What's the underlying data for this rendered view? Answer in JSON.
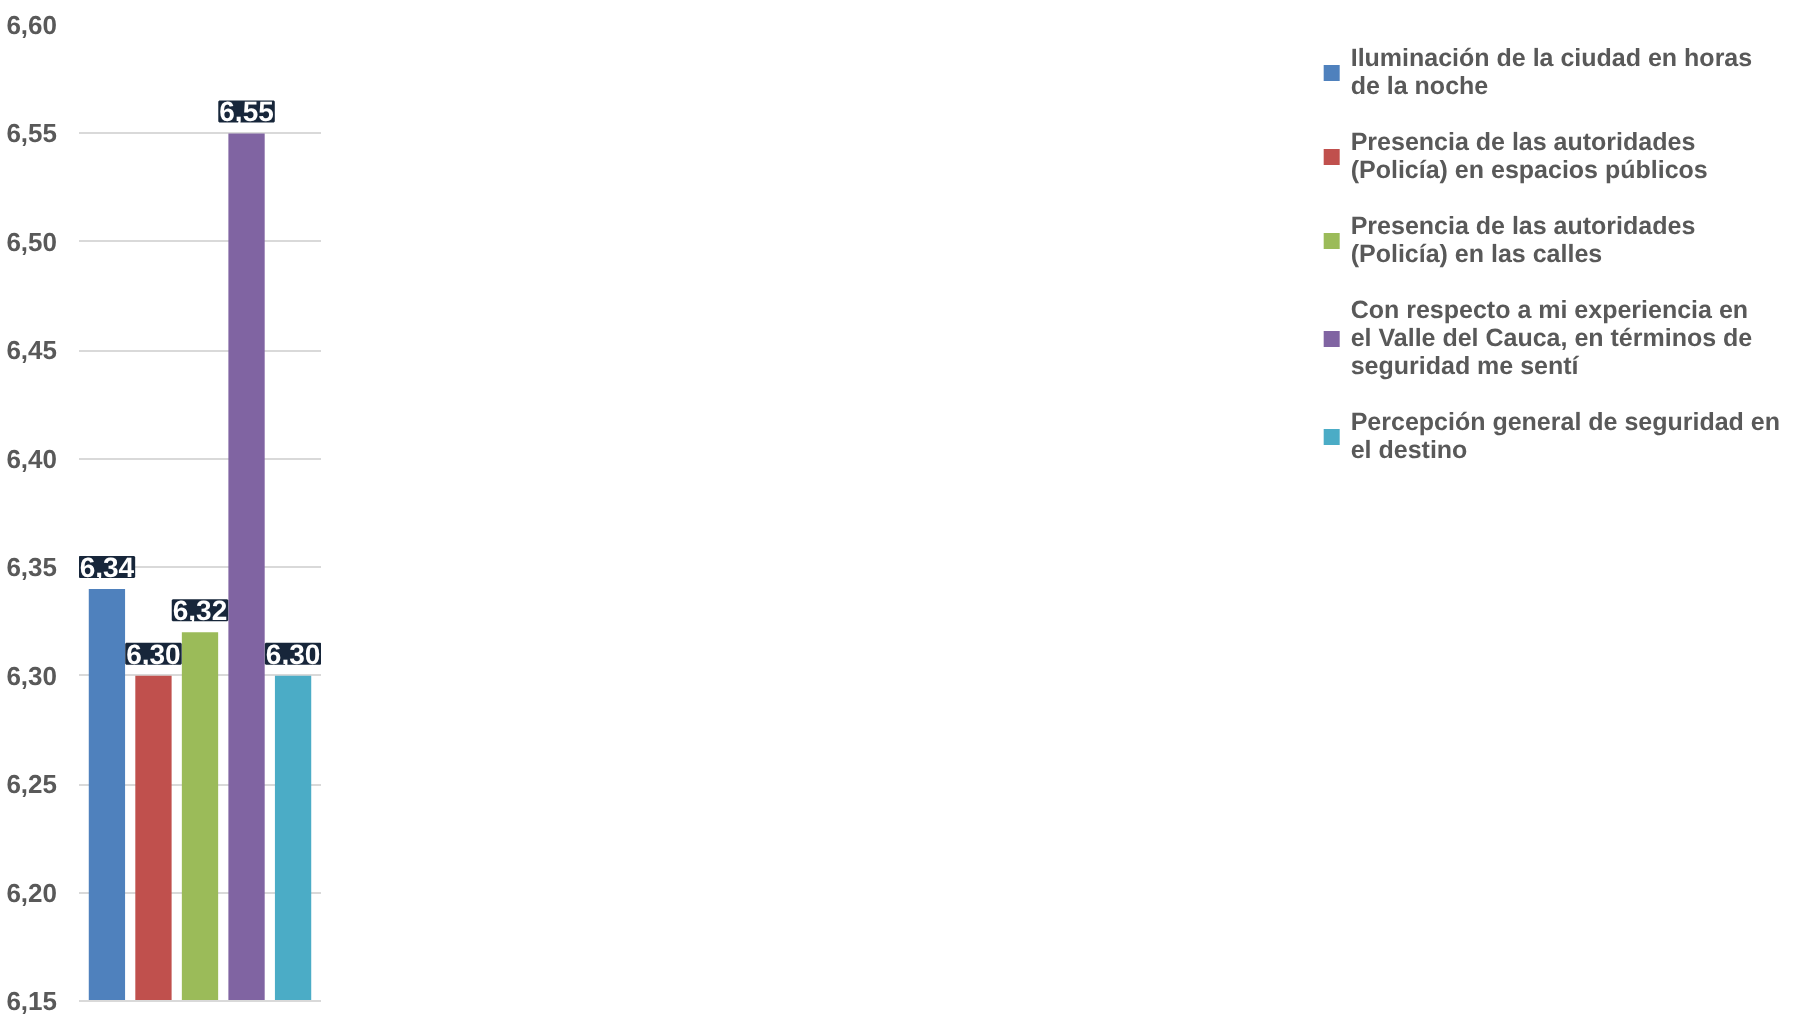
{
  "chart_data": {
    "type": "bar",
    "categories": [
      null,
      null,
      null,
      null,
      null
    ],
    "series": [
      {
        "name": "Iluminación de la ciudad en horas de la noche",
        "color": "#4f81bd",
        "values": [
          6.34,
          null,
          null,
          null,
          null
        ],
        "value_labels": [
          "6,34",
          null,
          null,
          null,
          null
        ]
      },
      {
        "name": "Presencia de las autoridades (Policía) en espacios públicos",
        "color": "#c0504d",
        "values": [
          null,
          6.3,
          null,
          null,
          null
        ],
        "value_labels": [
          null,
          "6,30",
          null,
          null,
          null
        ]
      },
      {
        "name": "Presencia de las autoridades (Policía) en las calles",
        "color": "#9bbb59",
        "values": [
          null,
          null,
          6.32,
          null,
          null
        ],
        "value_labels": [
          null,
          null,
          "6,32",
          null,
          null
        ]
      },
      {
        "name": "Con respecto a mi experiencia en el Valle del Cauca, en términos de seguridad me sentí",
        "color": "#8064a2",
        "values": [
          null,
          null,
          null,
          6.55,
          null
        ],
        "value_labels": [
          null,
          null,
          null,
          "6,55",
          null
        ]
      },
      {
        "name": "Percepción general de seguridad en el destino",
        "color": "#4bacc6",
        "values": [
          null,
          null,
          null,
          null,
          6.3
        ],
        "value_labels": [
          null,
          null,
          null,
          null,
          "6,30"
        ]
      }
    ],
    "ylim": [
      6.15,
      6.6
    ],
    "yticks": [
      {
        "value": 6.15,
        "label": "6,15"
      },
      {
        "value": 6.2,
        "label": "6,20"
      },
      {
        "value": 6.25,
        "label": "6,25"
      },
      {
        "value": 6.3,
        "label": "6,30"
      },
      {
        "value": 6.35,
        "label": "6,35"
      },
      {
        "value": 6.4,
        "label": "6,40"
      },
      {
        "value": 6.45,
        "label": "6,45"
      },
      {
        "value": 6.5,
        "label": "6,50"
      },
      {
        "value": 6.55,
        "label": "6,55"
      },
      {
        "value": 6.6,
        "label": "6,60"
      }
    ],
    "grid": "y",
    "legend": "right"
  }
}
